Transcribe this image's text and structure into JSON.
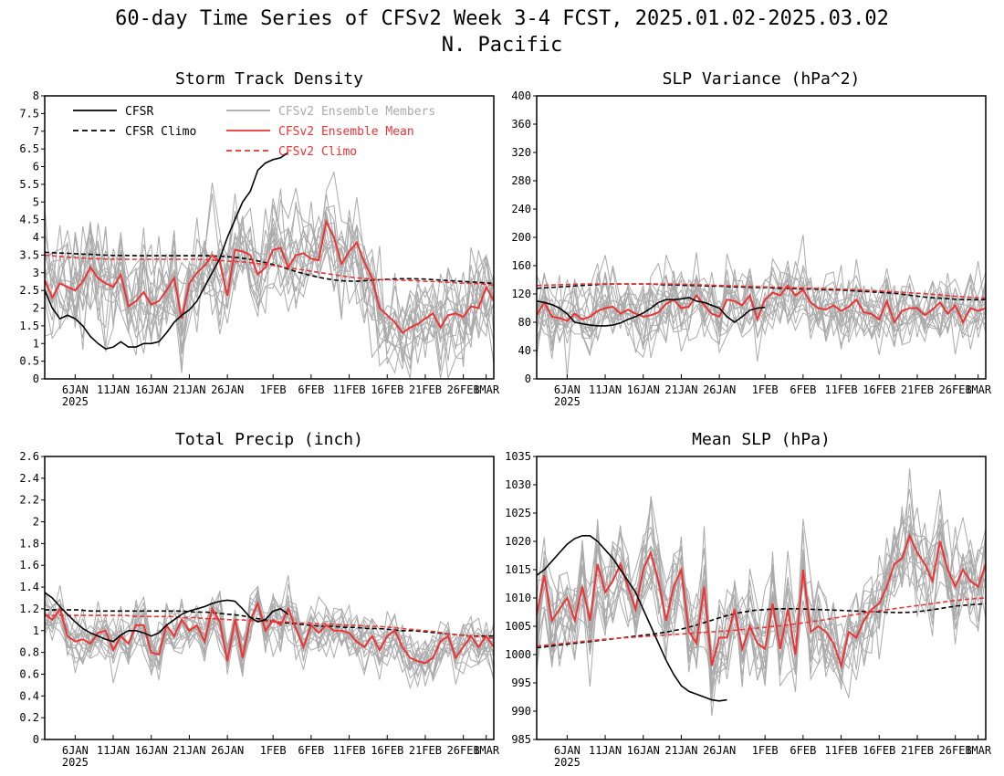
{
  "figure": {
    "title": "60-day Time Series of CFSv2 Week 3-4 FCST, 2025.01.02-2025.03.02",
    "subtitle": "N. Pacific"
  },
  "colors": {
    "cfsr": "#000000",
    "member": "#aaaaaa",
    "ens_mean": "#ee3333",
    "cfsv2_climo": "#ee3333"
  },
  "legend": {
    "placement": "top-left of Storm Track Density panel",
    "entries": [
      {
        "label": "CFSR",
        "style": "solid",
        "color": "#000000"
      },
      {
        "label": "CFSR Climo",
        "style": "dashed",
        "color": "#000000"
      },
      {
        "label": "CFSv2 Ensemble Members",
        "style": "solid",
        "color": "#aaaaaa"
      },
      {
        "label": "CFSv2 Ensemble Mean",
        "style": "solid",
        "color": "#ee3333"
      },
      {
        "label": "CFSv2 Climo",
        "style": "dashed",
        "color": "#ee3333"
      }
    ]
  },
  "x_axis": {
    "n_days": 60,
    "start": "2025-01-02",
    "end": "2025-03-02",
    "ticks": [
      {
        "day": 4,
        "label": "6JAN"
      },
      {
        "day": 9,
        "label": "11JAN"
      },
      {
        "day": 14,
        "label": "16JAN"
      },
      {
        "day": 19,
        "label": "21JAN"
      },
      {
        "day": 24,
        "label": "26JAN"
      },
      {
        "day": 30,
        "label": "1FEB"
      },
      {
        "day": 35,
        "label": "6FEB"
      },
      {
        "day": 40,
        "label": "11FEB"
      },
      {
        "day": 45,
        "label": "16FEB"
      },
      {
        "day": 50,
        "label": "21FEB"
      },
      {
        "day": 55,
        "label": "26FEB"
      },
      {
        "day": 58,
        "label": "1MAR"
      }
    ],
    "year_label": "2025"
  },
  "chart_data": [
    {
      "type": "line",
      "title": "Storm Track Density",
      "ylim": [
        0,
        8
      ],
      "yticks": [
        "0",
        "0.5",
        "1",
        "1.5",
        "2",
        "2.5",
        "3",
        "3.5",
        "4",
        "4.5",
        "5",
        "5.5",
        "6",
        "6.5",
        "7",
        "7.5",
        "8"
      ],
      "n_members": 16,
      "member_spread": 0.85,
      "series": [
        {
          "name": "CFSR",
          "style": "solid",
          "values": [
            2.5,
            2.0,
            1.7,
            1.8,
            1.7,
            1.5,
            1.2,
            1.0,
            0.85,
            0.9,
            1.05,
            0.9,
            0.9,
            1.0,
            1.0,
            1.05,
            1.3,
            1.6,
            1.8,
            1.95,
            2.2,
            2.6,
            3.0,
            3.4,
            4.0,
            4.5,
            5.0,
            5.3,
            5.9,
            6.1,
            6.2,
            6.25,
            6.4
          ]
        },
        {
          "name": "CFSR Climo",
          "style": "dashed",
          "values": [
            3.58,
            3.56,
            3.55,
            3.53,
            3.52,
            3.5,
            3.49,
            3.49,
            3.48,
            3.48,
            3.48,
            3.48,
            3.48,
            3.48,
            3.48,
            3.47,
            3.45,
            3.42,
            3.37,
            3.3,
            3.22,
            3.12,
            3.02,
            2.93,
            2.86,
            2.8,
            2.77,
            2.76,
            2.78,
            2.8,
            2.82,
            2.83,
            2.83,
            2.82,
            2.8,
            2.78,
            2.76,
            2.74,
            2.72,
            2.7
          ]
        },
        {
          "name": "CFSv2 Ensemble Mean",
          "style": "solid",
          "values": [
            2.8,
            2.3,
            2.7,
            2.6,
            2.5,
            2.75,
            3.15,
            2.85,
            2.7,
            2.6,
            2.95,
            2.05,
            2.2,
            2.45,
            2.1,
            2.2,
            2.5,
            2.85,
            1.7,
            2.7,
            3.0,
            3.2,
            3.5,
            3.3,
            2.35,
            3.65,
            3.6,
            3.5,
            2.95,
            3.15,
            3.65,
            3.7,
            3.15,
            3.5,
            3.55,
            3.4,
            3.35,
            4.45,
            4.0,
            3.25,
            3.6,
            3.85,
            3.3,
            2.85,
            2.0,
            1.8,
            1.6,
            1.3,
            1.45,
            1.55,
            1.7,
            1.85,
            1.45,
            1.8,
            1.85,
            1.75,
            2.05,
            2.0,
            2.6,
            2.2
          ]
        },
        {
          "name": "CFSv2 Climo",
          "style": "dashed",
          "values": [
            3.5,
            3.47,
            3.44,
            3.42,
            3.4,
            3.39,
            3.38,
            3.38,
            3.38,
            3.38,
            3.38,
            3.38,
            3.38,
            3.38,
            3.37,
            3.35,
            3.33,
            3.31,
            3.28,
            3.24,
            3.2,
            3.15,
            3.1,
            3.05,
            3.0,
            2.95,
            2.9,
            2.86,
            2.83,
            2.81,
            2.8,
            2.79,
            2.78,
            2.76,
            2.75,
            2.73,
            2.71,
            2.7,
            2.68,
            2.65
          ]
        }
      ]
    },
    {
      "type": "line",
      "title": "SLP Variance (hPa^2)",
      "ylim": [
        0,
        400
      ],
      "yticks": [
        "0",
        "40",
        "80",
        "120",
        "160",
        "200",
        "240",
        "280",
        "320",
        "360",
        "400"
      ],
      "n_members": 16,
      "member_spread": 30,
      "series": [
        {
          "name": "CFSR",
          "style": "solid",
          "values": [
            110,
            108,
            105,
            100,
            92,
            80,
            78,
            76,
            75,
            75,
            76,
            79,
            84,
            88,
            93,
            100,
            108,
            112,
            112,
            113,
            115,
            110,
            108,
            104,
            100,
            88,
            80,
            88,
            97,
            100,
            101
          ]
        },
        {
          "name": "CFSR Climo",
          "style": "dashed",
          "values": [
            128,
            129,
            130,
            131,
            132,
            133,
            134,
            134,
            134,
            134,
            134,
            133,
            133,
            132,
            132,
            131,
            131,
            130,
            130,
            129,
            129,
            128,
            128,
            127,
            127,
            126,
            126,
            125,
            124,
            123,
            122,
            121,
            119,
            117,
            115,
            114,
            113,
            112,
            112,
            112
          ]
        },
        {
          "name": "CFSv2 Ensemble Mean",
          "style": "solid",
          "values": [
            90,
            108,
            88,
            86,
            82,
            92,
            84,
            88,
            96,
            100,
            102,
            92,
            98,
            92,
            88,
            90,
            94,
            106,
            112,
            100,
            102,
            118,
            104,
            92,
            88,
            112,
            110,
            104,
            118,
            84,
            112,
            122,
            118,
            132,
            118,
            126,
            108,
            100,
            98,
            104,
            96,
            102,
            112,
            94,
            92,
            84,
            110,
            80,
            96,
            100,
            100,
            90,
            98,
            108,
            92,
            104,
            80,
            100,
            96,
            100
          ]
        },
        {
          "name": "CFSv2 Climo",
          "style": "dashed",
          "values": [
            132,
            132.5,
            133,
            133.5,
            134,
            134,
            134,
            134,
            134,
            134,
            134,
            134,
            134,
            133.5,
            133,
            132.5,
            132,
            131.5,
            131,
            130.5,
            130,
            129.5,
            129,
            128.5,
            128,
            127.5,
            127,
            126.5,
            126,
            125,
            124,
            123,
            122,
            121,
            120,
            119,
            117,
            116,
            115,
            114
          ]
        }
      ]
    },
    {
      "type": "line",
      "title": "Total Precip (inch)",
      "ylim": [
        0,
        2.6
      ],
      "yticks": [
        "0",
        "0.2",
        "0.4",
        "0.6",
        "0.8",
        "1",
        "1.2",
        "1.4",
        "1.6",
        "1.8",
        "2",
        "2.2",
        "2.4",
        "2.6"
      ],
      "n_members": 16,
      "member_spread": 0.14,
      "series": [
        {
          "name": "CFSR",
          "style": "solid",
          "values": [
            1.35,
            1.3,
            1.22,
            1.15,
            1.08,
            1.02,
            0.98,
            0.95,
            0.92,
            0.9,
            0.96,
            1.0,
            1.0,
            0.98,
            0.95,
            0.98,
            1.05,
            1.1,
            1.15,
            1.18,
            1.2,
            1.22,
            1.25,
            1.27,
            1.28,
            1.27,
            1.2,
            1.12,
            1.08,
            1.1,
            1.18,
            1.2,
            1.15
          ]
        },
        {
          "name": "CFSR Climo",
          "style": "dashed",
          "values": [
            1.19,
            1.19,
            1.19,
            1.19,
            1.18,
            1.18,
            1.18,
            1.18,
            1.18,
            1.18,
            1.18,
            1.18,
            1.18,
            1.17,
            1.17,
            1.16,
            1.15,
            1.14,
            1.12,
            1.1,
            1.08,
            1.07,
            1.06,
            1.05,
            1.04,
            1.04,
            1.03,
            1.03,
            1.02,
            1.02,
            1.01,
            1.0,
            1.0,
            0.99,
            0.98,
            0.97,
            0.96,
            0.95,
            0.95,
            0.95
          ]
        },
        {
          "name": "CFSv2 Ensemble Mean",
          "style": "solid",
          "values": [
            1.15,
            1.1,
            1.2,
            0.95,
            0.9,
            0.92,
            0.88,
            0.98,
            1.0,
            0.82,
            0.95,
            0.88,
            1.05,
            1.05,
            0.8,
            0.78,
            1.05,
            0.95,
            1.1,
            1.0,
            1.05,
            0.9,
            1.2,
            1.08,
            0.72,
            1.1,
            0.75,
            1.1,
            1.25,
            1.0,
            1.1,
            1.05,
            1.2,
            1.02,
            0.85,
            1.05,
            0.98,
            1.05,
            1.0,
            1.0,
            0.98,
            0.9,
            0.85,
            0.95,
            0.82,
            0.95,
            1.0,
            0.85,
            0.75,
            0.72,
            0.7,
            0.75,
            0.9,
            0.95,
            0.75,
            0.85,
            0.95,
            0.85,
            0.95,
            0.85
          ]
        },
        {
          "name": "CFSv2 Climo",
          "style": "dashed",
          "values": [
            1.14,
            1.14,
            1.14,
            1.14,
            1.14,
            1.14,
            1.14,
            1.14,
            1.13,
            1.13,
            1.13,
            1.13,
            1.12,
            1.12,
            1.11,
            1.11,
            1.1,
            1.1,
            1.09,
            1.09,
            1.08,
            1.08,
            1.07,
            1.07,
            1.06,
            1.06,
            1.05,
            1.05,
            1.04,
            1.04,
            1.03,
            1.02,
            1.01,
            1.0,
            0.99,
            0.97,
            0.96,
            0.95,
            0.94,
            0.93
          ]
        }
      ]
    },
    {
      "type": "line",
      "title": "Mean SLP (hPa)",
      "ylim": [
        985,
        1035
      ],
      "yticks": [
        "985",
        "990",
        "995",
        "1000",
        "1005",
        "1010",
        "1015",
        "1020",
        "1025",
        "1030",
        "1035"
      ],
      "n_members": 16,
      "member_spread": 5,
      "series": [
        {
          "name": "CFSR",
          "style": "solid",
          "values": [
            1014,
            1015,
            1016.5,
            1018,
            1019.5,
            1020.5,
            1021,
            1021,
            1020,
            1018.5,
            1017,
            1015,
            1013,
            1011,
            1008,
            1005,
            1002,
            999,
            996.5,
            994.5,
            993.5,
            993,
            992.5,
            992,
            991.8,
            992
          ]
        },
        {
          "name": "CFSR Climo",
          "style": "dashed",
          "values": [
            1001.2,
            1001.5,
            1001.8,
            1002.1,
            1002.4,
            1002.7,
            1003,
            1003.3,
            1003.6,
            1004,
            1004.5,
            1005.2,
            1006,
            1006.8,
            1007.4,
            1007.8,
            1008,
            1008.1,
            1008.1,
            1008,
            1007.9,
            1007.8,
            1007.7,
            1007.6,
            1007.5,
            1007.4,
            1007.5,
            1007.8,
            1008.2,
            1008.6,
            1008.8,
            1009
          ]
        },
        {
          "name": "CFSv2 Ensemble Mean",
          "style": "solid",
          "values": [
            1007,
            1014,
            1006,
            1008,
            1010,
            1006,
            1012,
            1006,
            1016,
            1011,
            1013,
            1016,
            1012,
            1008,
            1015,
            1018,
            1013,
            1006,
            1012,
            1015,
            1004,
            1002,
            1012,
            998,
            1003,
            1003,
            1008,
            1001,
            1005,
            1002,
            1001,
            1009,
            1001,
            1008,
            1000,
            1015,
            1004,
            1005,
            1004,
            1002,
            998,
            1004,
            1003,
            1006,
            1008,
            1009,
            1012,
            1016,
            1017,
            1021,
            1018,
            1016,
            1013,
            1020,
            1015,
            1012,
            1015,
            1013,
            1012,
            1016
          ]
        },
        {
          "name": "CFSv2 Climo",
          "style": "dashed",
          "values": [
            1001.5,
            1001.8,
            1002.1,
            1002.4,
            1002.7,
            1002.9,
            1003.1,
            1003.3,
            1003.5,
            1003.7,
            1003.9,
            1004.1,
            1004.3,
            1004.6,
            1004.9,
            1005.2,
            1005.6,
            1006,
            1006.5,
            1007,
            1007.5,
            1007.9,
            1008.3,
            1008.7,
            1009.1,
            1009.5,
            1009.8,
            1010
          ]
        }
      ]
    }
  ]
}
